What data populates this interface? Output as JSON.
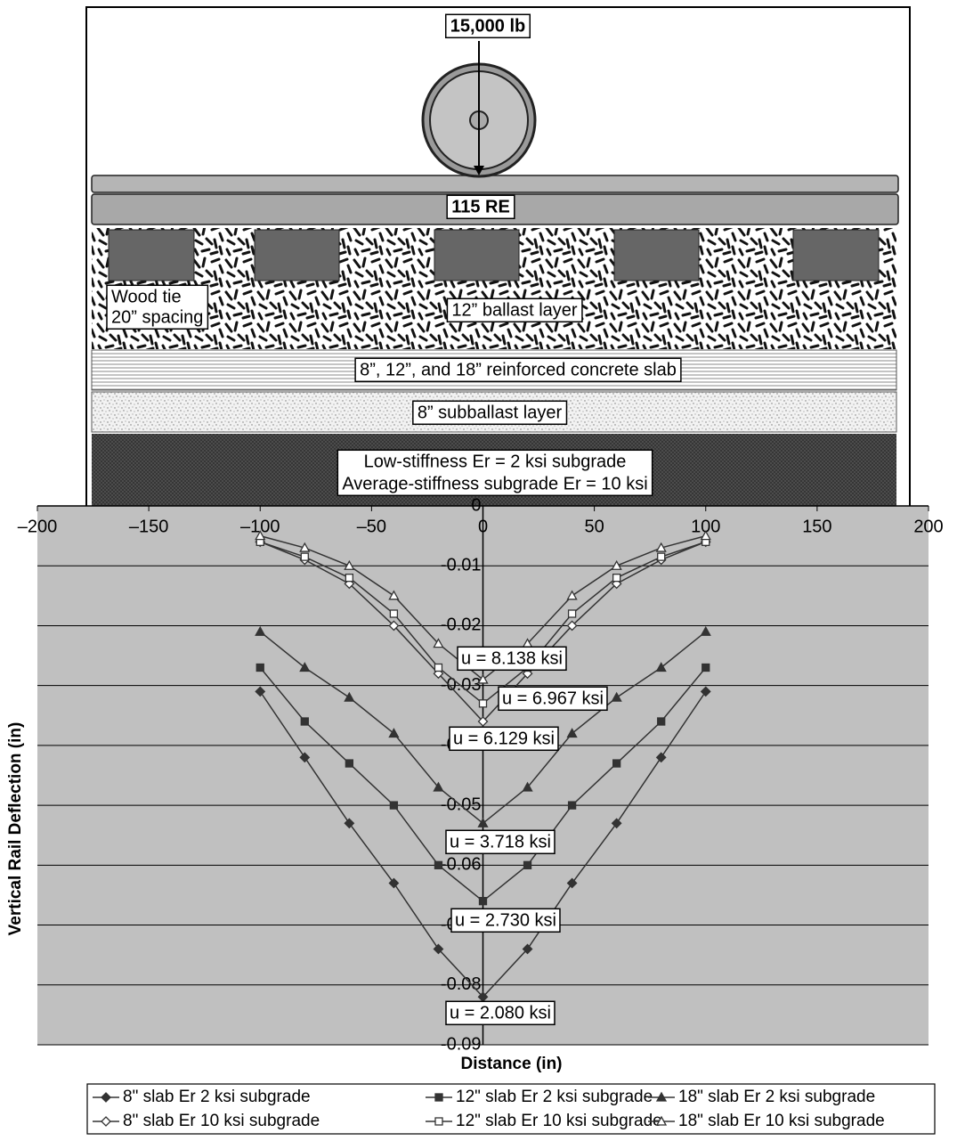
{
  "diagram": {
    "load": "15,000 lb",
    "rail": "115 RE",
    "tie_label": [
      "Wood tie",
      "20” spacing"
    ],
    "ballast": "12” ballast layer",
    "slab": "8”, 12”, and 18” reinforced concrete slab",
    "subballast": "8” subballast layer",
    "subgrade": [
      "Low-stiffness Er = 2 ksi subgrade",
      "Average-stiffness subgrade Er = 10 ksi"
    ]
  },
  "chart_data": {
    "type": "line",
    "xlabel": "Distance (in)",
    "ylabel": "Vertical Rail Deflection (in)",
    "x": [
      -100,
      -80,
      -60,
      -40,
      -20,
      0,
      20,
      40,
      60,
      80,
      100
    ],
    "xlim": [
      -200,
      200
    ],
    "xticks": [
      {
        "value": -200,
        "label": "–200"
      },
      {
        "value": -150,
        "label": "–150"
      },
      {
        "value": -100,
        "label": "–100"
      },
      {
        "value": -50,
        "label": "–50"
      },
      0,
      50,
      100,
      150,
      200
    ],
    "ylim": [
      -0.09,
      0
    ],
    "yticks": [
      0,
      -0.01,
      -0.02,
      -0.03,
      -0.04,
      -0.05,
      -0.06,
      -0.07,
      -0.08,
      -0.09
    ],
    "grid": true,
    "series": [
      {
        "name": "8\" slab Er 2 ksi subgrade",
        "color": "#333333",
        "marker": "diamond",
        "filled": true,
        "values": [
          -0.031,
          -0.042,
          -0.053,
          -0.063,
          -0.074,
          -0.082,
          -0.074,
          -0.063,
          -0.053,
          -0.042,
          -0.031
        ]
      },
      {
        "name": "12\" slab Er 2 ksi subgrade",
        "color": "#333333",
        "marker": "square",
        "filled": true,
        "values": [
          -0.027,
          -0.036,
          -0.043,
          -0.05,
          -0.06,
          -0.066,
          -0.06,
          -0.05,
          -0.043,
          -0.036,
          -0.027
        ]
      },
      {
        "name": "18\" slab Er 2 ksi subgrade",
        "color": "#333333",
        "marker": "triangle",
        "filled": true,
        "values": [
          -0.021,
          -0.027,
          -0.032,
          -0.038,
          -0.047,
          -0.053,
          -0.047,
          -0.038,
          -0.032,
          -0.027,
          -0.021
        ]
      },
      {
        "name": "8\" slab Er 10 ksi subgrade",
        "color": "#333333",
        "marker": "diamond",
        "filled": false,
        "values": [
          -0.006,
          -0.009,
          -0.013,
          -0.02,
          -0.028,
          -0.036,
          -0.028,
          -0.02,
          -0.013,
          -0.009,
          -0.006
        ]
      },
      {
        "name": "12\" slab Er 10 ksi subgrade",
        "color": "#333333",
        "marker": "square",
        "filled": false,
        "values": [
          -0.006,
          -0.0085,
          -0.012,
          -0.018,
          -0.027,
          -0.033,
          -0.027,
          -0.018,
          -0.012,
          -0.0085,
          -0.006
        ]
      },
      {
        "name": "18\" slab Er 10 ksi subgrade",
        "color": "#333333",
        "marker": "triangle",
        "filled": false,
        "values": [
          -0.005,
          -0.007,
          -0.01,
          -0.015,
          -0.023,
          -0.029,
          -0.023,
          -0.015,
          -0.01,
          -0.007,
          -0.005
        ]
      }
    ],
    "annotations": [
      "u = 8.138 ksi",
      "u = 6.967 ksi",
      "u = 6.129 ksi",
      "u = 3.718 ksi",
      "u = 2.730 ksi",
      "u = 2.080 ksi"
    ]
  }
}
